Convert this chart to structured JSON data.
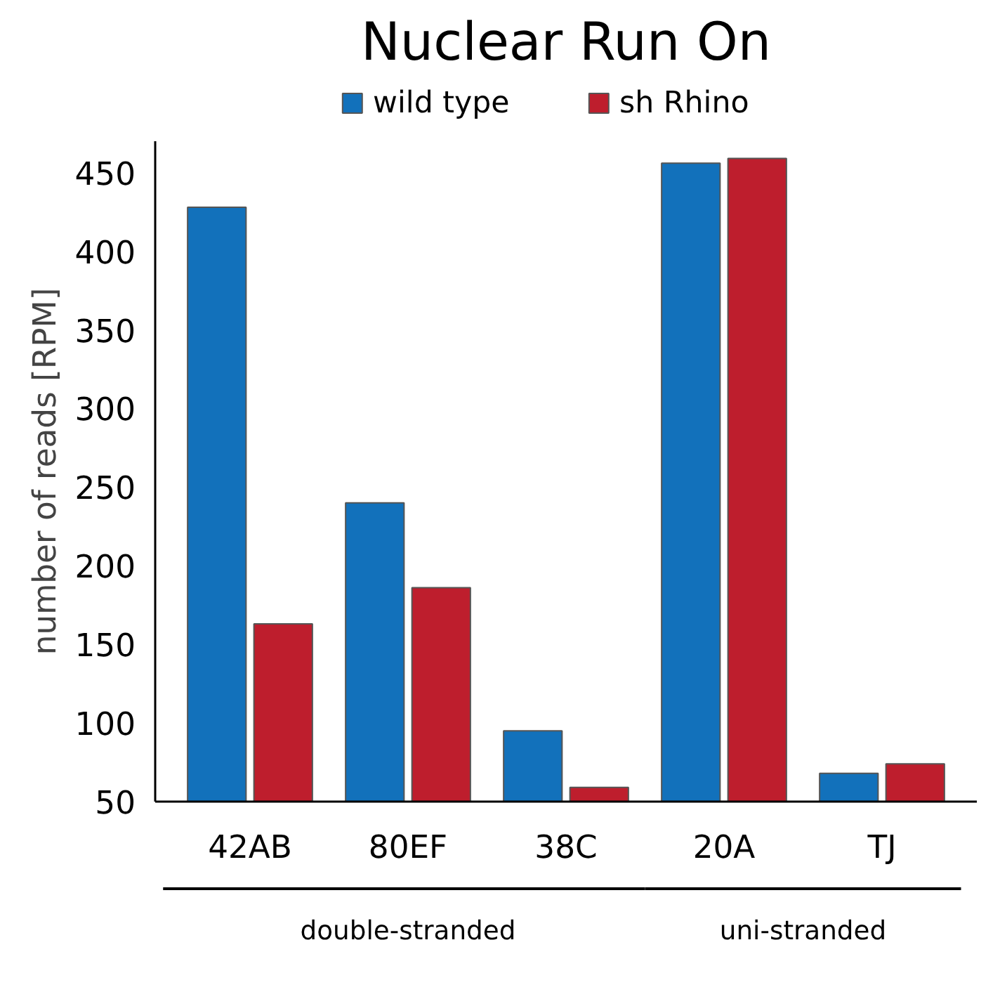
{
  "chart_data": {
    "type": "bar",
    "title": "Nuclear Run On",
    "ylabel": "number of reads [RPM]",
    "categories": [
      "42AB",
      "80EF",
      "38C",
      "20A",
      "TJ"
    ],
    "series": [
      {
        "name": "wild type",
        "color": "#1271bb",
        "values": [
          428,
          240,
          95,
          456,
          68
        ]
      },
      {
        "name": "sh Rhino",
        "color": "#be1e2d",
        "values": [
          163,
          186,
          59,
          459,
          74
        ]
      }
    ],
    "ylim": [
      50,
      470
    ],
    "yticks": [
      50,
      100,
      150,
      200,
      250,
      300,
      350,
      400,
      450
    ],
    "annotations": [
      "double-stranded",
      "uni-stranded"
    ],
    "grid": false,
    "legend": "top"
  }
}
